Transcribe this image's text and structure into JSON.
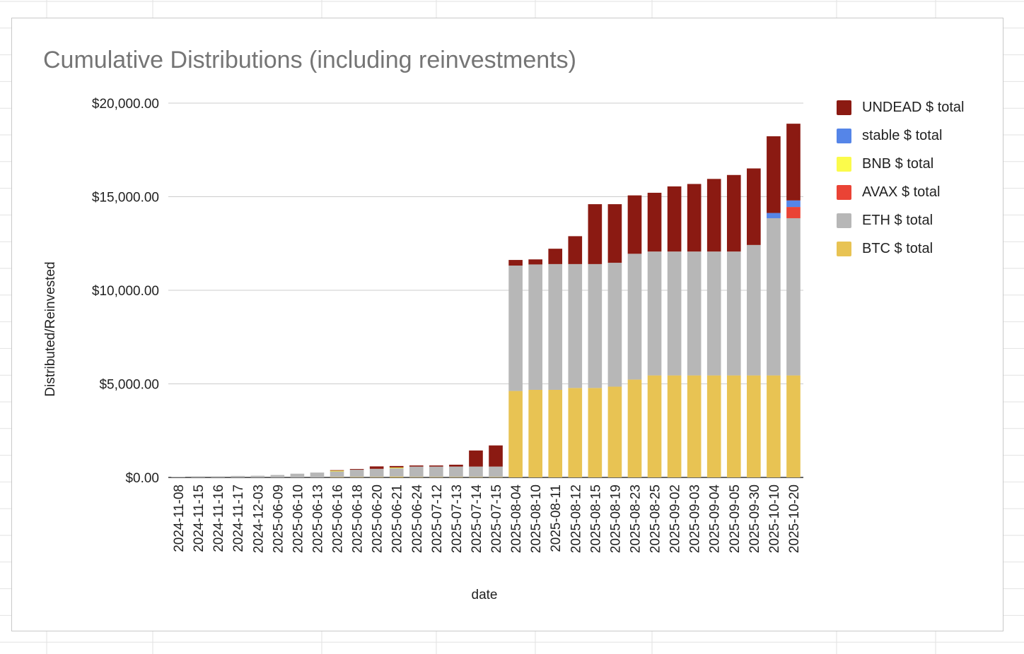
{
  "chart_data": {
    "type": "bar",
    "stacked": true,
    "title": "Cumulative Distributions (including reinvestments)",
    "xlabel": "date",
    "ylabel": "Distributed/Reinvested",
    "ylim": [
      0,
      20000
    ],
    "yticks": [
      "$0.00",
      "$5,000.00",
      "$10,000.00",
      "$15,000.00",
      "$20,000.00"
    ],
    "ytick_values": [
      0,
      5000,
      10000,
      15000,
      20000
    ],
    "grid": true,
    "legend_position": "right",
    "categories": [
      "2024-11-08",
      "2024-11-15",
      "2024-11-16",
      "2024-11-17",
      "2024-12-03",
      "2025-06-09",
      "2025-06-10",
      "2025-06-13",
      "2025-06-16",
      "2025-06-18",
      "2025-06-20",
      "2025-06-21",
      "2025-06-24",
      "2025-07-12",
      "2025-07-13",
      "2025-07-14",
      "2025-07-15",
      "2025-08-04",
      "2025-08-10",
      "2025-08-11",
      "2025-08-12",
      "2025-08-15",
      "2025-08-19",
      "2025-08-23",
      "2025-08-25",
      "2025-09-02",
      "2025-09-03",
      "2025-09-04",
      "2025-09-05",
      "2025-09-30",
      "2025-10-10",
      "2025-10-20"
    ],
    "series": [
      {
        "name": "BTC $ total",
        "color": "#e8c353",
        "values": [
          0,
          0,
          0,
          0,
          0,
          0,
          0,
          0,
          20,
          20,
          20,
          40,
          20,
          20,
          20,
          20,
          20,
          4620,
          4680,
          4680,
          4780,
          4780,
          4850,
          5230,
          5450,
          5450,
          5450,
          5450,
          5450,
          5450,
          5450,
          5450
        ]
      },
      {
        "name": "ETH $ total",
        "color": "#b7b7b7",
        "values": [
          30,
          60,
          60,
          80,
          90,
          130,
          200,
          260,
          300,
          390,
          440,
          450,
          560,
          560,
          560,
          560,
          560,
          6700,
          6700,
          6720,
          6620,
          6620,
          6620,
          6720,
          6620,
          6620,
          6620,
          6620,
          6620,
          6970,
          8400,
          8400
        ]
      },
      {
        "name": "AVAX $ total",
        "color": "#ea4335",
        "values": [
          0,
          0,
          0,
          0,
          0,
          0,
          0,
          0,
          0,
          0,
          0,
          0,
          0,
          0,
          0,
          0,
          0,
          0,
          0,
          0,
          0,
          0,
          0,
          0,
          0,
          0,
          0,
          0,
          0,
          0,
          0,
          600
        ]
      },
      {
        "name": "BNB $ total",
        "color": "#fbfb4b",
        "values": [
          0,
          0,
          0,
          0,
          0,
          0,
          0,
          0,
          40,
          0,
          0,
          40,
          0,
          0,
          0,
          0,
          0,
          0,
          0,
          0,
          0,
          0,
          0,
          0,
          0,
          0,
          0,
          0,
          0,
          0,
          0,
          0
        ]
      },
      {
        "name": "stable $ total",
        "color": "#5585e8",
        "values": [
          0,
          0,
          0,
          0,
          0,
          0,
          0,
          0,
          0,
          0,
          0,
          0,
          0,
          0,
          0,
          0,
          0,
          0,
          0,
          0,
          0,
          0,
          0,
          0,
          0,
          0,
          0,
          0,
          0,
          0,
          280,
          350
        ]
      },
      {
        "name": "UNDEAD $ total",
        "color": "#8b1a12",
        "values": [
          0,
          0,
          0,
          0,
          0,
          0,
          0,
          0,
          30,
          40,
          130,
          80,
          60,
          60,
          100,
          860,
          1130,
          300,
          270,
          820,
          1490,
          3200,
          3130,
          3120,
          3140,
          3480,
          3610,
          3880,
          4090,
          4090,
          4100,
          4100
        ]
      }
    ],
    "legend_order": [
      "UNDEAD $ total",
      "stable $ total",
      "BNB $ total",
      "AVAX $ total",
      "ETH $ total",
      "BTC $ total"
    ]
  }
}
